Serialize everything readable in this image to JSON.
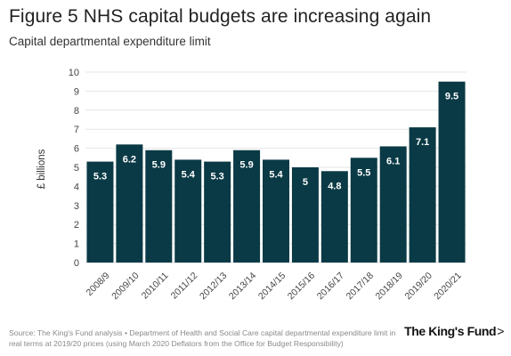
{
  "header": {
    "title": "Figure 5 NHS capital budgets are increasing again",
    "subtitle": "Capital departmental expenditure limit"
  },
  "footer": {
    "source": "Source: The King's Fund analysis • Department of Health and Social Care capital departmental expenditure limit in real terms at 2019/20 prices (using March 2020 Deflators from the Office for Budget Responsibility)",
    "logo_text": "The King's Fund",
    "logo_chevron": ">"
  },
  "colors": {
    "bar": "#0a3a45",
    "bar_label": "#ffffff",
    "axis_text": "#444444",
    "gridline": "#e6e6e6",
    "text": "#222222"
  },
  "chart_data": {
    "type": "bar",
    "categories": [
      "2008/9",
      "2009/10",
      "2010/11",
      "2011/12",
      "2012/13",
      "2013/14",
      "2014/15",
      "2015/16",
      "2016/17",
      "2017/18",
      "2018/19",
      "2019/20",
      "2020/21"
    ],
    "values": [
      5.3,
      6.2,
      5.9,
      5.4,
      5.3,
      5.9,
      5.4,
      5,
      4.8,
      5.5,
      6.1,
      7.1,
      9.5
    ],
    "value_labels": [
      "5.3",
      "6.2",
      "5.9",
      "5.4",
      "5.3",
      "5.9",
      "5.4",
      "5",
      "4.8",
      "5.5",
      "6.1",
      "7.1",
      "9.5"
    ],
    "title": "Figure 5 NHS capital budgets are increasing again",
    "subtitle": "Capital departmental expenditure limit",
    "xlabel": "",
    "ylabel": "£ billions",
    "ylim": [
      0,
      10
    ],
    "yticks": [
      0,
      1,
      2,
      3,
      4,
      5,
      6,
      7,
      8,
      9,
      10
    ],
    "grid": true
  }
}
